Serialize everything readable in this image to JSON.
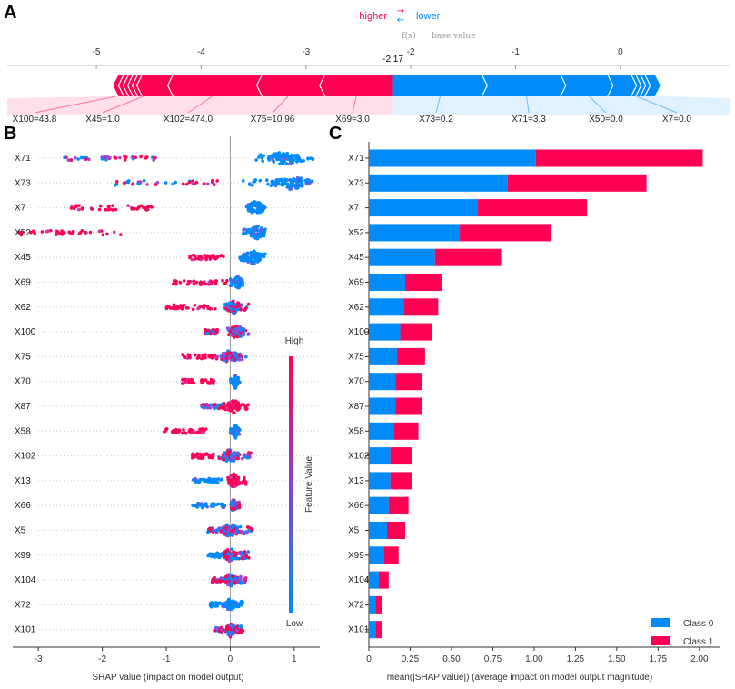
{
  "colors": {
    "positive": "#ff0052",
    "negative": "#008bfb",
    "neutral_line": "#888888"
  },
  "panels": {
    "a": "A",
    "b": "B",
    "c": "C"
  },
  "chart_data": [
    {
      "type": "force",
      "panel": "A",
      "legend": {
        "higher": "higher",
        "lower": "lower",
        "arrow_higher": "→",
        "arrow_lower": "←"
      },
      "fx_label": "f(x)",
      "base_value_label": "base value",
      "fx_value_text": "-2.17",
      "fx_value": -2.17,
      "base_value": -1.87,
      "axis_range": [
        -5.85,
        1.05
      ],
      "ticks": [
        -5,
        -4,
        -3,
        -2,
        -1,
        0
      ],
      "tick_labels": [
        "-5",
        "-4",
        "-3",
        "-2",
        "-1",
        "0"
      ],
      "positive_features": [
        {
          "label": "X100=43.8",
          "contribution": 0.05
        },
        {
          "label": "X45=1.0",
          "contribution": 0.47
        },
        {
          "label": "X102=474.0",
          "contribution": 0.85
        },
        {
          "label": "X75=10.96",
          "contribution": 0.6
        },
        {
          "label": "X69=3.0",
          "contribution": 0.7
        }
      ],
      "negative_features": [
        {
          "label": "X73=0.2",
          "contribution": 0.9
        },
        {
          "label": "X71=3.3",
          "contribution": 0.75
        },
        {
          "label": "X50=0.0",
          "contribution": 0.45
        },
        {
          "label": "X7=0.0",
          "contribution": 0.45
        }
      ]
    },
    {
      "type": "scatter",
      "panel": "B",
      "subtype": "beeswarm",
      "xlabel": "SHAP value (impact on model output)",
      "xlim": [
        -3.4,
        1.4
      ],
      "ticks": [
        -3,
        -2,
        -1,
        0,
        1
      ],
      "tick_labels": [
        "-3",
        "-2",
        "-1",
        "0",
        "1"
      ],
      "colorbar": {
        "title": "Feature Value",
        "high": "High",
        "low": "Low"
      },
      "features": [
        {
          "name": "X71",
          "neg": [
            -2.6,
            -1.15,
            "mixed"
          ],
          "pos": [
            0.4,
            1.3,
            "blue"
          ],
          "center": [
            0.85,
            0.25
          ]
        },
        {
          "name": "X73",
          "neg": [
            -1.8,
            -0.2,
            "mixed"
          ],
          "pos": [
            0.2,
            1.3,
            "blue"
          ],
          "center": [
            0.95,
            0.3
          ]
        },
        {
          "name": "X7",
          "neg": [
            -2.5,
            -1.2,
            "red"
          ],
          "pos": [
            0.25,
            0.55,
            "blue"
          ],
          "center": [
            0.4,
            0.12
          ]
        },
        {
          "name": "X52",
          "neg": [
            -3.3,
            -1.7,
            "red"
          ],
          "pos": [
            0.2,
            0.55,
            "blue"
          ],
          "center": [
            0.42,
            0.12
          ]
        },
        {
          "name": "X45",
          "neg": [
            -0.65,
            -0.1,
            "red"
          ],
          "pos": [
            0.15,
            0.55,
            "blue"
          ],
          "center": [
            0.35,
            0.12
          ]
        },
        {
          "name": "X69",
          "neg": [
            -0.9,
            -0.05,
            "red"
          ],
          "pos": [
            0.0,
            0.2,
            "blue"
          ],
          "center": [
            0.12,
            0.05
          ]
        },
        {
          "name": "X62",
          "neg": [
            -1.0,
            -0.2,
            "red"
          ],
          "pos": [
            -0.1,
            0.3,
            "mixed"
          ],
          "center": [
            0.05,
            0.12
          ]
        },
        {
          "name": "X100",
          "neg": [
            -0.4,
            -0.2,
            "mixed"
          ],
          "pos": [
            -0.05,
            0.3,
            "mixed"
          ],
          "center": [
            0.1,
            0.1
          ]
        },
        {
          "name": "X75",
          "neg": [
            -0.75,
            -0.2,
            "red"
          ],
          "pos": [
            -0.15,
            0.25,
            "mixed"
          ],
          "center": [
            0.0,
            0.1
          ]
        },
        {
          "name": "X70",
          "neg": [
            -0.75,
            -0.2,
            "red"
          ],
          "pos": [
            0.0,
            0.15,
            "blue"
          ],
          "center": [
            0.08,
            0.03
          ]
        },
        {
          "name": "X87",
          "neg": [
            -0.45,
            -0.1,
            "mixed"
          ],
          "pos": [
            -0.1,
            0.3,
            "red"
          ],
          "center": [
            0.05,
            0.1
          ]
        },
        {
          "name": "X58",
          "neg": [
            -1.05,
            -0.35,
            "red"
          ],
          "pos": [
            0.0,
            0.15,
            "blue"
          ],
          "center": [
            0.08,
            0.03
          ]
        },
        {
          "name": "X102",
          "neg": [
            -0.6,
            -0.25,
            "red"
          ],
          "pos": [
            -0.2,
            0.35,
            "mixed"
          ],
          "center": [
            0.0,
            0.12
          ]
        },
        {
          "name": "X13",
          "neg": [
            -0.6,
            -0.1,
            "blue"
          ],
          "pos": [
            -0.05,
            0.25,
            "red"
          ],
          "center": [
            0.05,
            0.08
          ]
        },
        {
          "name": "X66",
          "neg": [
            -0.6,
            -0.05,
            "blue"
          ],
          "pos": [
            0.0,
            0.15,
            "mixed"
          ],
          "center": [
            0.05,
            0.03
          ]
        },
        {
          "name": "X5",
          "neg": [
            -0.35,
            0.0,
            "mixed"
          ],
          "pos": [
            0.0,
            0.35,
            "mixed"
          ],
          "center": [
            0.0,
            0.12
          ]
        },
        {
          "name": "X99",
          "neg": [
            -0.35,
            0.0,
            "blue"
          ],
          "pos": [
            0.0,
            0.3,
            "mixed"
          ],
          "center": [
            0.0,
            0.1
          ]
        },
        {
          "name": "X104",
          "neg": [
            -0.3,
            0.0,
            "mixed"
          ],
          "pos": [
            0.0,
            0.25,
            "mixed"
          ],
          "center": [
            0.0,
            0.08
          ]
        },
        {
          "name": "X72",
          "neg": [
            -0.35,
            0.0,
            "blue"
          ],
          "pos": [
            0.0,
            0.2,
            "blue"
          ],
          "center": [
            0.0,
            0.06
          ]
        },
        {
          "name": "X101",
          "neg": [
            -0.25,
            0.0,
            "mixed"
          ],
          "pos": [
            0.0,
            0.2,
            "mixed"
          ],
          "center": [
            0.0,
            0.06
          ]
        }
      ]
    },
    {
      "type": "bar",
      "panel": "C",
      "orientation": "horizontal",
      "stacked": true,
      "xlabel": "mean(|SHAP value|) (average impact on model output magnitude)",
      "xlim": [
        0,
        2.1
      ],
      "ticks": [
        0,
        0.25,
        0.5,
        0.75,
        1.0,
        1.25,
        1.5,
        1.75,
        2.0
      ],
      "tick_labels": [
        "0",
        "0.25",
        "0.50",
        "0.75",
        "1.00",
        "1.25",
        "1.50",
        "1.75",
        "2.00"
      ],
      "legend_position": "bottom-right",
      "categories": [
        "X71",
        "X73",
        "X7",
        "X52",
        "X45",
        "X69",
        "X62",
        "X100",
        "X75",
        "X70",
        "X87",
        "X58",
        "X102",
        "X13",
        "X66",
        "X5",
        "X99",
        "X104",
        "X72",
        "X101"
      ],
      "series": [
        {
          "name": "Class 0",
          "color": "#008bfb",
          "values": [
            1.01,
            0.84,
            0.66,
            0.55,
            0.4,
            0.22,
            0.21,
            0.19,
            0.17,
            0.16,
            0.16,
            0.15,
            0.13,
            0.13,
            0.12,
            0.11,
            0.09,
            0.06,
            0.04,
            0.04
          ]
        },
        {
          "name": "Class 1",
          "color": "#ff0052",
          "values": [
            1.01,
            0.84,
            0.66,
            0.55,
            0.4,
            0.22,
            0.21,
            0.19,
            0.17,
            0.16,
            0.16,
            0.15,
            0.13,
            0.13,
            0.12,
            0.11,
            0.09,
            0.06,
            0.04,
            0.04
          ]
        }
      ]
    }
  ]
}
